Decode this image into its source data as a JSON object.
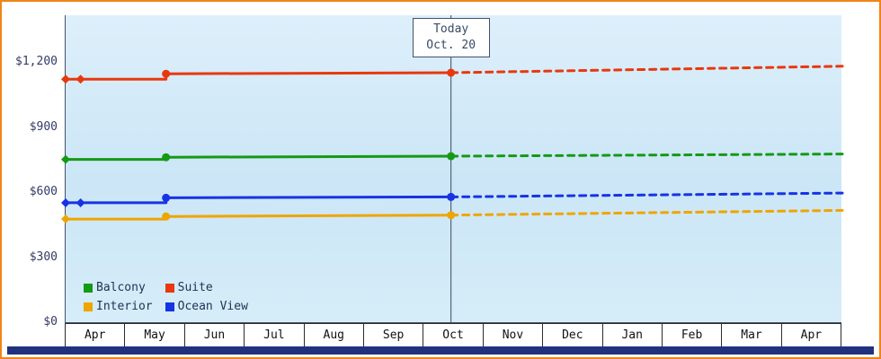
{
  "chart_data": {
    "type": "line",
    "y_axis_max": 1420,
    "yticks": [
      {
        "value": 0,
        "label": "$0"
      },
      {
        "value": 300,
        "label": "$300"
      },
      {
        "value": 600,
        "label": "$600"
      },
      {
        "value": 900,
        "label": "$900"
      },
      {
        "value": 1200,
        "label": "$1,200"
      }
    ],
    "x_categories": [
      "Apr",
      "May",
      "Jun",
      "Jul",
      "Aug",
      "Sep",
      "Oct",
      "Nov",
      "Dec",
      "Jan",
      "Feb",
      "Mar",
      "Apr"
    ],
    "x_end": 13,
    "today_marker": {
      "line1": "Today",
      "line2": "Oct. 20",
      "x_index": 6.45
    },
    "series": [
      {
        "name": "Suite",
        "color": "#e8380d",
        "solid": [
          [
            0,
            1125
          ],
          [
            1.68,
            1125
          ],
          [
            1.68,
            1150
          ],
          [
            6.45,
            1155
          ]
        ],
        "dashed": [
          [
            6.45,
            1155
          ],
          [
            13,
            1185
          ]
        ],
        "markers": [
          {
            "x": 0,
            "y": 1125,
            "s": "d"
          },
          {
            "x": 0.25,
            "y": 1125,
            "s": "d"
          },
          {
            "x": 1.68,
            "y": 1150,
            "s": "c"
          },
          {
            "x": 6.45,
            "y": 1155,
            "s": "c"
          }
        ]
      },
      {
        "name": "Balcony",
        "color": "#149a14",
        "solid": [
          [
            0,
            755
          ],
          [
            1.68,
            755
          ],
          [
            1.68,
            765
          ],
          [
            6.45,
            770
          ]
        ],
        "dashed": [
          [
            6.45,
            770
          ],
          [
            13,
            780
          ]
        ],
        "markers": [
          {
            "x": 0,
            "y": 755,
            "s": "d"
          },
          {
            "x": 1.68,
            "y": 765,
            "s": "c"
          },
          {
            "x": 6.45,
            "y": 770,
            "s": "c"
          }
        ]
      },
      {
        "name": "Ocean View",
        "color": "#1733e6",
        "solid": [
          [
            0,
            555
          ],
          [
            1.68,
            555
          ],
          [
            1.68,
            578
          ],
          [
            6.45,
            582
          ]
        ],
        "dashed": [
          [
            6.45,
            582
          ],
          [
            13,
            600
          ]
        ],
        "markers": [
          {
            "x": 0,
            "y": 555,
            "s": "d"
          },
          {
            "x": 0.25,
            "y": 555,
            "s": "d"
          },
          {
            "x": 1.68,
            "y": 578,
            "s": "c"
          },
          {
            "x": 6.45,
            "y": 582,
            "s": "c"
          }
        ]
      },
      {
        "name": "Interior",
        "color": "#efa500",
        "solid": [
          [
            0,
            480
          ],
          [
            1.68,
            480
          ],
          [
            1.68,
            492
          ],
          [
            6.45,
            498
          ]
        ],
        "dashed": [
          [
            6.45,
            498
          ],
          [
            13,
            520
          ]
        ],
        "markers": [
          {
            "x": 0,
            "y": 480,
            "s": "d"
          },
          {
            "x": 1.68,
            "y": 492,
            "s": "c"
          },
          {
            "x": 6.45,
            "y": 498,
            "s": "c"
          }
        ]
      }
    ],
    "legend": [
      {
        "label": "Balcony",
        "color": "#149a14"
      },
      {
        "label": "Suite",
        "color": "#e8380d"
      },
      {
        "label": "Interior",
        "color": "#efa500"
      },
      {
        "label": "Ocean View",
        "color": "#1733e6"
      }
    ]
  },
  "colors": {
    "frame_border": "#f08519",
    "plot_bg": "#cde7f6",
    "axis_line": "#44506a",
    "today_line": "#3c4a63",
    "tick_text": "#333a66",
    "month_text": "#111111",
    "footer_bar": "#20317e"
  }
}
